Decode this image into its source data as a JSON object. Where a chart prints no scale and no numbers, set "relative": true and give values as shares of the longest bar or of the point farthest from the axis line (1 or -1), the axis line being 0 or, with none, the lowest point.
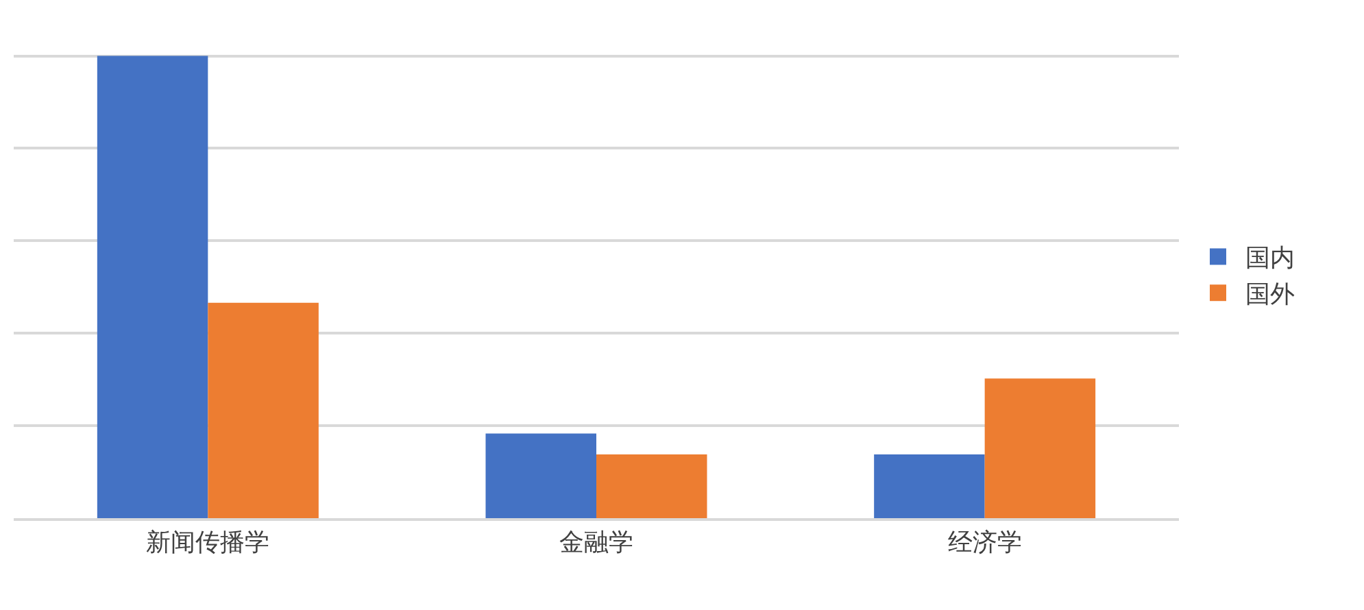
{
  "chart_data": {
    "type": "bar",
    "relative": true,
    "categories": [
      "新闻传播学",
      "金融学",
      "经济学"
    ],
    "series": [
      {
        "name": "国内",
        "color": "#4472c4",
        "values": [
          1,
          0.183,
          0.138
        ]
      },
      {
        "name": "国外",
        "color": "#ed7d31",
        "values": [
          0.466,
          0.138,
          0.302
        ]
      }
    ],
    "grid": "y",
    "legend": "right"
  }
}
